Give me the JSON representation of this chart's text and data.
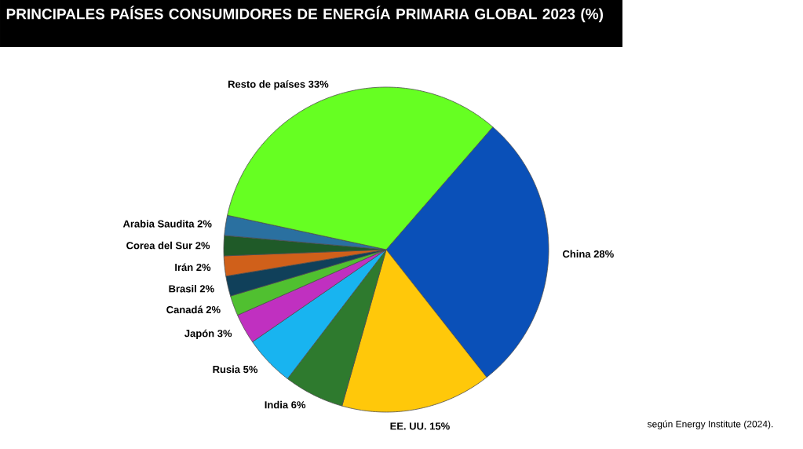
{
  "chart_data": {
    "type": "pie",
    "title": "PRINCIPALES PAÍSES CONSUMIDORES DE ENERGÍA PRIMARIA GLOBAL 2023 (%)",
    "categories": [
      "China",
      "EE. UU.",
      "India",
      "Rusia",
      "Japón",
      "Canadá",
      "Brasil",
      "Irán",
      "Corea del Sur",
      "Arabia Saudita",
      "Resto de países"
    ],
    "values": [
      28,
      15,
      6,
      5,
      3,
      2,
      2,
      2,
      2,
      2,
      33
    ],
    "value_labels": [
      "28%",
      "15%",
      "6%",
      "5%",
      "3%",
      "2%",
      "2%",
      "2%",
      "2%",
      "2%",
      "33%"
    ],
    "colors": [
      "#0a50b8",
      "#ffc80a",
      "#2e7a2e",
      "#18b4f0",
      "#c030c0",
      "#50c030",
      "#10405a",
      "#d0601a",
      "#1f5a28",
      "#2a70a0",
      "#66ff22"
    ],
    "annotations": [
      "según Energy Institute (2024)."
    ]
  }
}
